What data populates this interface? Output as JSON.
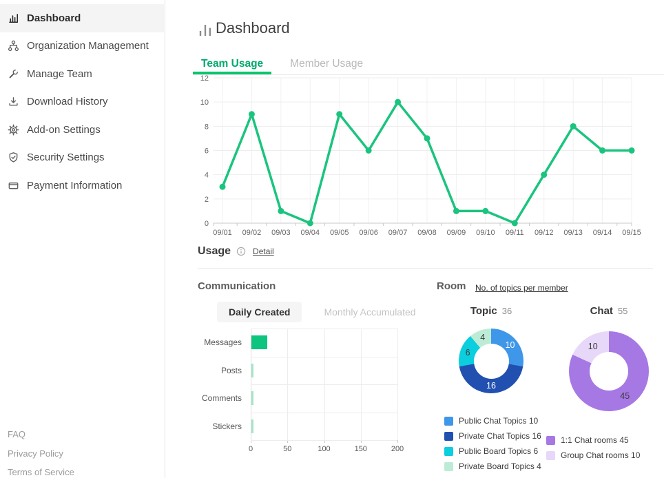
{
  "sidebar": {
    "items": [
      {
        "label": "Dashboard",
        "icon": "bar-chart-icon",
        "active": true
      },
      {
        "label": "Organization Management",
        "icon": "org-tree-icon",
        "active": false
      },
      {
        "label": "Manage Team",
        "icon": "wrench-icon",
        "active": false
      },
      {
        "label": "Download History",
        "icon": "download-icon",
        "active": false
      },
      {
        "label": "Add-on Settings",
        "icon": "gear-icon",
        "active": false
      },
      {
        "label": "Security Settings",
        "icon": "shield-check-icon",
        "active": false
      },
      {
        "label": "Payment Information",
        "icon": "credit-card-icon",
        "active": false
      }
    ],
    "footer_links": [
      "FAQ",
      "Privacy Policy",
      "Terms of Service"
    ]
  },
  "header": {
    "title": "Dashboard",
    "icon": "bar-chart-icon"
  },
  "tabs": [
    {
      "label": "Team Usage",
      "active": true
    },
    {
      "label": "Member Usage",
      "active": false
    }
  ],
  "usage": {
    "heading": "Usage",
    "info_icon": "info-icon",
    "detail_link": "Detail"
  },
  "communication": {
    "heading": "Communication",
    "tabs": [
      {
        "label": "Daily Created",
        "active": true
      },
      {
        "label": "Monthly Accumulated",
        "active": false
      }
    ]
  },
  "room": {
    "heading": "Room",
    "link": "No. of topics per member"
  },
  "colors": {
    "accent_green": "#00a96c",
    "tab_underline": "#0cc46f",
    "chart_line_green": "#1bc47e",
    "bar_green": "#0ec57f",
    "bar_green_light": "#a8e5c8",
    "grid_line": "#ededed",
    "axis_line": "#c9c9c9"
  },
  "chart_data": [
    {
      "id": "team-usage-line",
      "type": "line",
      "title": "Team Usage daily line chart",
      "x": [
        "09/01",
        "09/02",
        "09/03",
        "09/04",
        "09/05",
        "09/06",
        "09/07",
        "09/08",
        "09/09",
        "09/10",
        "09/11",
        "09/12",
        "09/13",
        "09/14",
        "09/15"
      ],
      "values": [
        3,
        9,
        1,
        0,
        9,
        6,
        10,
        7,
        1,
        1,
        0,
        4,
        8,
        6,
        6
      ],
      "ylim": [
        0,
        12
      ],
      "yticks": [
        0,
        2,
        4,
        6,
        8,
        10,
        12
      ],
      "grid": true,
      "legend": "none",
      "color": "#1bc47e"
    },
    {
      "id": "communication-bar",
      "type": "bar",
      "orientation": "horizontal",
      "categories": [
        "Messages",
        "Posts",
        "Comments",
        "Stickers"
      ],
      "values": [
        22,
        1,
        1,
        1
      ],
      "bar_colors": [
        "#0ec57f",
        "#a8e5c8",
        "#a8e5c8",
        "#a8e5c8"
      ],
      "xlim": [
        0,
        200
      ],
      "xticks": [
        0,
        50,
        100,
        150,
        200
      ],
      "grid": true
    },
    {
      "id": "topic-donut",
      "type": "pie",
      "title": "Topic",
      "total": 36,
      "slices": [
        {
          "label": "Public Chat Topics",
          "value": 10,
          "color": "#3e97e8",
          "label_color": "#ffffff"
        },
        {
          "label": "Private Chat Topics",
          "value": 16,
          "color": "#2150b0",
          "label_color": "#ffffff"
        },
        {
          "label": "Public Board Topics",
          "value": 6,
          "color": "#0bcede",
          "label_color": "#3c3c3c"
        },
        {
          "label": "Private Board Topics",
          "value": 4,
          "color": "#bdecd6",
          "label_color": "#3c3c3c"
        }
      ],
      "legend_position": "bottom"
    },
    {
      "id": "chat-donut",
      "type": "pie",
      "title": "Chat",
      "total": 55,
      "slices": [
        {
          "label": "1:1 Chat rooms",
          "value": 45,
          "color": "#a678e4",
          "label_color": "#3c3c3c"
        },
        {
          "label": "Group Chat rooms",
          "value": 10,
          "color": "#e7d8f9",
          "label_color": "#3c3c3c"
        }
      ],
      "legend_position": "bottom"
    }
  ]
}
